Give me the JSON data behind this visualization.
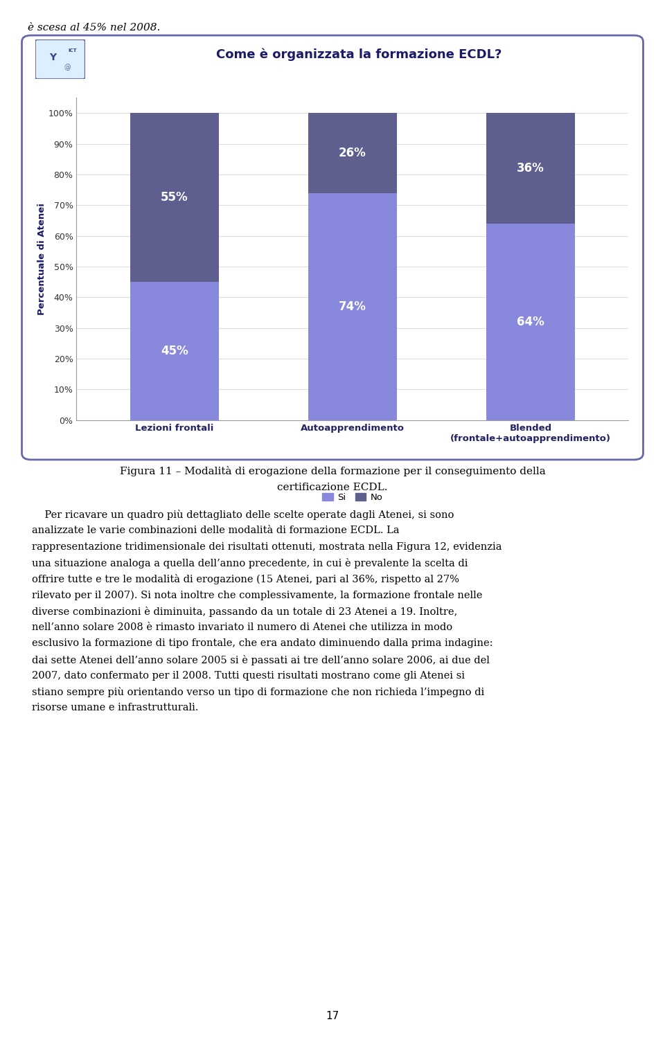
{
  "title": "Come è organizzata la formazione ECDL?",
  "categories": [
    "Lezioni frontali",
    "Autoapprendimento",
    "Blended\n(frontale+autoapprendimento)"
  ],
  "si_values": [
    45,
    74,
    64
  ],
  "no_values": [
    55,
    26,
    36
  ],
  "si_color": "#8888dd",
  "no_color": "#5f5f8f",
  "ylabel": "Percentuale di Atenei",
  "yticks": [
    0,
    10,
    20,
    30,
    40,
    50,
    60,
    70,
    80,
    90,
    100
  ],
  "ytick_labels": [
    "0%",
    "10%",
    "20%",
    "30%",
    "40%",
    "50%",
    "60%",
    "70%",
    "80%",
    "90%",
    "100%"
  ],
  "legend_si": "Si",
  "legend_no": "No",
  "top_text": "è scesa al 45% nel 2008.",
  "figure_caption_line1": "Figura 11 – Modalità di erogazione della formazione per il conseguimento della",
  "figure_caption_line2": "certificazione ECDL.",
  "body_lines": [
    "    Per ricavare un quadro più dettagliato delle scelte operate dagli Atenei, si sono",
    "analizzate le varie combinazioni delle modalità di formazione ECDL. La",
    "rappresentazione tridimensionale dei risultati ottenuti, mostrata nella Figura 12, evidenzia",
    "una situazione analoga a quella dell’anno precedente, in cui è prevalente la scelta di",
    "offrire tutte e tre le modalità di erogazione (15 Atenei, pari al 36%, rispetto al 27%",
    "rilevato per il 2007). Si nota inoltre che complessivamente, la formazione frontale nelle",
    "diverse combinazioni è diminuita, passando da un totale di 23 Atenei a 19. Inoltre,",
    "nell’anno solare 2008 è rimasto invariato il numero di Atenei che utilizza in modo",
    "esclusivo la formazione di tipo frontale, che era andato diminuendo dalla prima indagine:",
    "dai sette Atenei dell’anno solare 2005 si è passati ai tre dell’anno solare 2006, ai due del",
    "2007, dato confermato per il 2008. Tutti questi risultati mostrano come gli Atenei si",
    "stiano sempre più orientando verso un tipo di formazione che non richieda l’impegno di",
    "risorse umane e infrastrutturali."
  ],
  "page_number": "17",
  "background_color": "#ffffff",
  "border_color": "#6666aa",
  "title_color": "#1a1a66",
  "bar_width": 0.5
}
